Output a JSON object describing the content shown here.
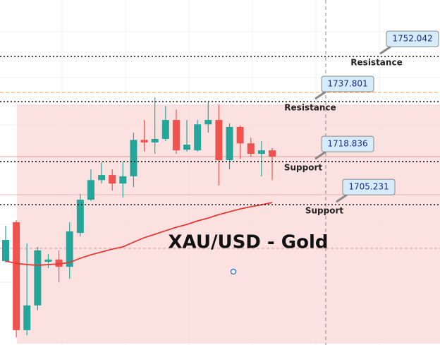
{
  "chart_data": {
    "type": "candlestick",
    "title": "XAU/USD - Gold",
    "ylim": [
      1660.9,
      1769.9
    ],
    "up_color": "#26a69a",
    "down_color": "#ef5350",
    "open": [
      1687.4,
      1699.7,
      1665.6,
      1673.4,
      1687.2,
      1687.9,
      1685.6,
      1696.3,
      1706.8,
      1713.0,
      1714.6,
      1711.9,
      1714.2,
      1725.7,
      1724.9,
      1726.0,
      1732.0,
      1722.6,
      1722.4,
      1730.6,
      1732.0,
      1719.3,
      1729.8,
      1724.6,
      1721.3,
      1722.4
    ],
    "high": [
      1698.6,
      1700.3,
      1693.0,
      1691.9,
      1689.6,
      1690.8,
      1699.7,
      1708.6,
      1716.4,
      1718.6,
      1716.4,
      1718.6,
      1728.0,
      1732.0,
      1739.1,
      1736.4,
      1735.3,
      1732.0,
      1732.0,
      1737.6,
      1736.9,
      1730.9,
      1730.2,
      1726.4,
      1725.3,
      1723.1
    ],
    "low": [
      1687.0,
      1663.3,
      1664.0,
      1671.8,
      1685.2,
      1680.7,
      1681.8,
      1695.2,
      1706.4,
      1711.9,
      1709.7,
      1707.5,
      1710.8,
      1722.0,
      1721.3,
      1725.3,
      1721.3,
      1722.0,
      1722.0,
      1728.0,
      1711.3,
      1716.4,
      1719.7,
      1720.4,
      1714.2,
      1713.0
    ],
    "close": [
      1694.1,
      1665.6,
      1673.4,
      1690.8,
      1687.9,
      1685.6,
      1696.8,
      1706.8,
      1713.0,
      1714.6,
      1711.9,
      1714.2,
      1725.7,
      1724.9,
      1726.0,
      1732.0,
      1722.4,
      1724.2,
      1730.6,
      1732.0,
      1719.3,
      1729.8,
      1724.6,
      1721.3,
      1722.4,
      1720.4
    ],
    "moving_average": {
      "color": "#e53935",
      "values": [
        1687.4,
        1686.7,
        1686.3,
        1686.1,
        1686.3,
        1686.5,
        1687.0,
        1688.3,
        1689.4,
        1690.3,
        1691.2,
        1691.9,
        1693.4,
        1694.8,
        1695.9,
        1697.0,
        1698.1,
        1699.0,
        1700.1,
        1701.0,
        1702.1,
        1703.0,
        1703.9,
        1704.6,
        1705.2,
        1705.9
      ]
    },
    "levels": [
      {
        "price": 1752.042,
        "label": "Resistance"
      },
      {
        "price": 1737.801,
        "label": "Resistance"
      },
      {
        "price": 1718.836,
        "label": "Support"
      },
      {
        "price": 1705.231,
        "label": "Support"
      }
    ]
  }
}
